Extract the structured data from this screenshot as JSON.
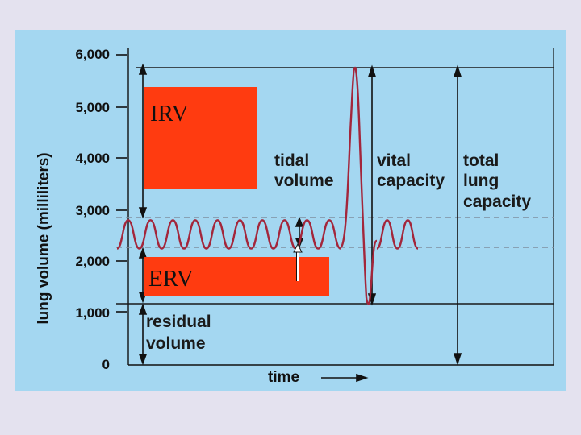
{
  "chart_data": {
    "type": "line",
    "title": "",
    "xlabel": "time",
    "ylabel": "lung volume (milliliters)",
    "ylim": [
      0,
      6000
    ],
    "y_ticks": [
      "6,000",
      "5,000",
      "4,000",
      "3,000",
      "2,000",
      "1,000",
      "0"
    ],
    "y_tick_values": [
      6000,
      5000,
      4000,
      3000,
      2000,
      1000,
      0
    ],
    "reference_lines": {
      "tidal_top": 2800,
      "tidal_bottom": 2250,
      "residual": 1200,
      "maximum": 5800
    },
    "series": [
      {
        "x": [
          0,
          1,
          2,
          3,
          4,
          5,
          6,
          7,
          8,
          9,
          10,
          11,
          12,
          13,
          14,
          15,
          16,
          17,
          18,
          19,
          20
        ],
        "values": [
          2250,
          2800,
          2250,
          2800,
          2250,
          2800,
          2250,
          2800,
          2250,
          2800,
          2250,
          2800,
          2250,
          2800,
          2250,
          2800,
          2250,
          2800,
          2250,
          2800,
          2250
        ]
      }
    ],
    "annotations": [
      {
        "text": "tidal volume",
        "lines": [
          "tidal",
          "volume"
        ]
      },
      {
        "text": "vital capacity",
        "lines": [
          "vital",
          "capacity"
        ]
      },
      {
        "text": "total lung capacity",
        "lines": [
          "total",
          "lung",
          "capacity"
        ]
      },
      {
        "text": "residual volume",
        "lines": [
          "residual",
          "volume"
        ]
      }
    ],
    "boxes": [
      {
        "label": "IRV",
        "color": "#ff3b10"
      },
      {
        "label": "ERV",
        "color": "#ff3b10"
      }
    ],
    "colors": {
      "plot_background": "#a4d7f1",
      "curve": "#a3263b",
      "dashed_line": "#7f8fa0",
      "axis": "#111111"
    }
  }
}
